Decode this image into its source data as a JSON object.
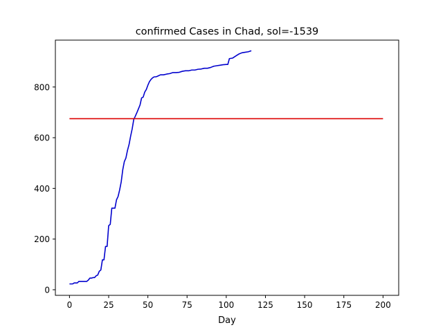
{
  "chart_data": {
    "type": "line",
    "title": "confirmed Cases in Chad, sol=-1539",
    "xlabel": "Day",
    "ylabel": "",
    "xlim": [
      -9,
      210
    ],
    "ylim": [
      -22,
      985
    ],
    "xticks": [
      0,
      25,
      50,
      75,
      100,
      125,
      150,
      175,
      200
    ],
    "yticks": [
      0,
      200,
      400,
      600,
      800
    ],
    "grid": false,
    "legend": "none",
    "series": [
      {
        "color": "#0000cd",
        "x": [
          0,
          2,
          3,
          5,
          6,
          8,
          10,
          11,
          12,
          13,
          14,
          15,
          16,
          17,
          18,
          19,
          20,
          21,
          22,
          23,
          24,
          25,
          26,
          27,
          28,
          29,
          30,
          31,
          32,
          33,
          34,
          35,
          36,
          37,
          38,
          39,
          40,
          41,
          42,
          43,
          44,
          45,
          46,
          47,
          48,
          49,
          50,
          51,
          52,
          53,
          54,
          55,
          56,
          58,
          60,
          62,
          64,
          66,
          68,
          70,
          72,
          74,
          76,
          78,
          80,
          82,
          84,
          86,
          88,
          90,
          92,
          94,
          96,
          98,
          100,
          101,
          102,
          104,
          106,
          108,
          110,
          112,
          114,
          116
        ],
        "y": [
          23,
          23,
          27,
          27,
          33,
          33,
          33,
          33,
          38,
          46,
          46,
          48,
          48,
          55,
          58,
          73,
          78,
          118,
          118,
          171,
          171,
          253,
          258,
          322,
          322,
          322,
          355,
          368,
          394,
          426,
          474,
          506,
          520,
          550,
          573,
          606,
          635,
          672,
          685,
          699,
          714,
          729,
          757,
          760,
          780,
          790,
          807,
          821,
          830,
          836,
          840,
          840,
          842,
          848,
          848,
          851,
          853,
          857,
          857,
          858,
          862,
          864,
          864,
          867,
          867,
          870,
          871,
          874,
          874,
          877,
          882,
          884,
          886,
          888,
          889,
          889,
          912,
          914,
          922,
          930,
          935,
          937,
          939,
          943
        ]
      },
      {
        "color": "#dd0000",
        "x": [
          0,
          200
        ],
        "y": [
          675,
          675
        ]
      }
    ]
  }
}
